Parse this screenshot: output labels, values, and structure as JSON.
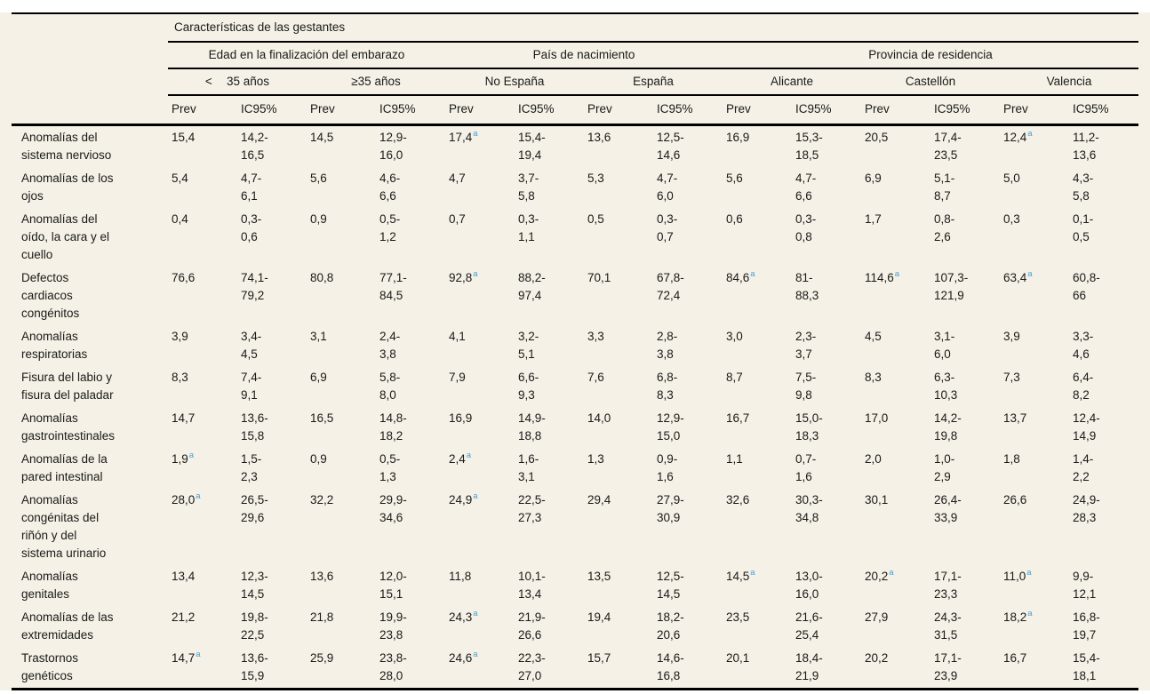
{
  "colors": {
    "background": "#f5f1e6",
    "rule": "#000000",
    "text": "#1a1a1a",
    "footnote_marker": "#44a0d8"
  },
  "table": {
    "title": "Características de las gestantes",
    "groups": [
      {
        "label": "Edad en la finalización del embarazo"
      },
      {
        "label": "País de nacimiento"
      },
      {
        "label": "Provincia de residencia"
      }
    ],
    "subgroups": [
      "<  35 años",
      "≥35 años",
      "No España",
      "España",
      "Alicante",
      "Castellón",
      "Valencia"
    ],
    "prev_label": "Prev",
    "ic_label": "IC95%",
    "footnote_symbol": "a",
    "rows": [
      {
        "label": "Anomalías del\nsistema nervioso",
        "cells": [
          {
            "v": "15,4"
          },
          {
            "v": "14,2-\n16,5"
          },
          {
            "v": "14,5"
          },
          {
            "v": "12,9-\n16,0"
          },
          {
            "v": "17,4",
            "s": "a"
          },
          {
            "v": "15,4-\n19,4"
          },
          {
            "v": "13,6"
          },
          {
            "v": "12,5-\n14,6"
          },
          {
            "v": "16,9"
          },
          {
            "v": "15,3-\n18,5"
          },
          {
            "v": "20,5"
          },
          {
            "v": "17,4-\n23,5"
          },
          {
            "v": "12,4",
            "s": "a"
          },
          {
            "v": "11,2-\n13,6"
          }
        ]
      },
      {
        "label": "Anomalías de los\nojos",
        "cells": [
          {
            "v": "5,4"
          },
          {
            "v": "4,7-\n6,1"
          },
          {
            "v": "5,6"
          },
          {
            "v": "4,6-\n6,6"
          },
          {
            "v": "4,7"
          },
          {
            "v": "3,7-\n5,8"
          },
          {
            "v": "5,3"
          },
          {
            "v": "4,7-\n6,0"
          },
          {
            "v": "5,6"
          },
          {
            "v": "4,7-\n6,6"
          },
          {
            "v": "6,9"
          },
          {
            "v": "5,1-\n8,7"
          },
          {
            "v": "5,0"
          },
          {
            "v": "4,3-\n5,8"
          }
        ]
      },
      {
        "label": "Anomalías del\noído, la cara y el\ncuello",
        "cells": [
          {
            "v": "0,4"
          },
          {
            "v": "0,3-\n0,6"
          },
          {
            "v": "0,9"
          },
          {
            "v": "0,5-\n1,2"
          },
          {
            "v": "0,7"
          },
          {
            "v": "0,3-\n1,1"
          },
          {
            "v": "0,5"
          },
          {
            "v": "0,3-\n0,7"
          },
          {
            "v": "0,6"
          },
          {
            "v": "0,3-\n0,8"
          },
          {
            "v": "1,7"
          },
          {
            "v": "0,8-\n2,6"
          },
          {
            "v": "0,3"
          },
          {
            "v": "0,1-\n0,5"
          }
        ]
      },
      {
        "label": "Defectos\ncardiacos\ncongénitos",
        "cells": [
          {
            "v": "76,6"
          },
          {
            "v": "74,1-\n79,2"
          },
          {
            "v": "80,8"
          },
          {
            "v": "77,1-\n84,5"
          },
          {
            "v": "92,8",
            "s": "a"
          },
          {
            "v": "88,2-\n97,4"
          },
          {
            "v": "70,1"
          },
          {
            "v": "67,8-\n72,4"
          },
          {
            "v": "84,6",
            "s": "a"
          },
          {
            "v": "81-\n88,3"
          },
          {
            "v": "114,6",
            "s": "a"
          },
          {
            "v": "107,3-\n121,9"
          },
          {
            "v": "63,4",
            "s": "a"
          },
          {
            "v": "60,8-\n66"
          }
        ]
      },
      {
        "label": "Anomalías\nrespiratorias",
        "cells": [
          {
            "v": "3,9"
          },
          {
            "v": "3,4-\n4,5"
          },
          {
            "v": "3,1"
          },
          {
            "v": "2,4-\n3,8"
          },
          {
            "v": "4,1"
          },
          {
            "v": "3,2-\n5,1"
          },
          {
            "v": "3,3"
          },
          {
            "v": "2,8-\n3,8"
          },
          {
            "v": "3,0"
          },
          {
            "v": "2,3-\n3,7"
          },
          {
            "v": "4,5"
          },
          {
            "v": "3,1-\n6,0"
          },
          {
            "v": "3,9"
          },
          {
            "v": "3,3-\n4,6"
          }
        ]
      },
      {
        "label": "Fisura del labio y\nfisura del paladar",
        "cells": [
          {
            "v": "8,3"
          },
          {
            "v": "7,4-\n9,1"
          },
          {
            "v": "6,9"
          },
          {
            "v": "5,8-\n8,0"
          },
          {
            "v": "7,9"
          },
          {
            "v": "6,6-\n9,3"
          },
          {
            "v": "7,6"
          },
          {
            "v": "6,8-\n8,3"
          },
          {
            "v": "8,7"
          },
          {
            "v": "7,5-\n9,8"
          },
          {
            "v": "8,3"
          },
          {
            "v": "6,3-\n10,3"
          },
          {
            "v": "7,3"
          },
          {
            "v": "6,4-\n8,2"
          }
        ]
      },
      {
        "label": "Anomalías\ngastrointestinales",
        "cells": [
          {
            "v": "14,7"
          },
          {
            "v": "13,6-\n15,8"
          },
          {
            "v": "16,5"
          },
          {
            "v": "14,8-\n18,2"
          },
          {
            "v": "16,9"
          },
          {
            "v": "14,9-\n18,8"
          },
          {
            "v": "14,0"
          },
          {
            "v": "12,9-\n15,0"
          },
          {
            "v": "16,7"
          },
          {
            "v": "15,0-\n18,3"
          },
          {
            "v": "17,0"
          },
          {
            "v": "14,2-\n19,8"
          },
          {
            "v": "13,7"
          },
          {
            "v": "12,4-\n14,9"
          }
        ]
      },
      {
        "label": "Anomalías de la\npared intestinal",
        "cells": [
          {
            "v": "1,9",
            "s": "a"
          },
          {
            "v": "1,5-\n2,3"
          },
          {
            "v": "0,9"
          },
          {
            "v": "0,5-\n1,3"
          },
          {
            "v": "2,4",
            "s": "a"
          },
          {
            "v": "1,6-\n3,1"
          },
          {
            "v": "1,3"
          },
          {
            "v": "0,9-\n1,6"
          },
          {
            "v": "1,1"
          },
          {
            "v": "0,7-\n1,6"
          },
          {
            "v": "2,0"
          },
          {
            "v": "1,0-\n2,9"
          },
          {
            "v": "1,8"
          },
          {
            "v": "1,4-\n2,2"
          }
        ]
      },
      {
        "label": "Anomalías\ncongénitas del\nriñón y del\nsistema urinario",
        "cells": [
          {
            "v": "28,0",
            "s": "a"
          },
          {
            "v": "26,5-\n29,6"
          },
          {
            "v": "32,2"
          },
          {
            "v": "29,9-\n34,6"
          },
          {
            "v": "24,9",
            "s": "a"
          },
          {
            "v": "22,5-\n27,3"
          },
          {
            "v": "29,4"
          },
          {
            "v": "27,9-\n30,9"
          },
          {
            "v": "32,6"
          },
          {
            "v": "30,3-\n34,8"
          },
          {
            "v": "30,1"
          },
          {
            "v": "26,4-\n33,9"
          },
          {
            "v": "26,6"
          },
          {
            "v": "24,9-\n28,3"
          }
        ]
      },
      {
        "label": "Anomalías\ngenitales",
        "cells": [
          {
            "v": "13,4"
          },
          {
            "v": "12,3-\n14,5"
          },
          {
            "v": "13,6"
          },
          {
            "v": "12,0-\n15,1"
          },
          {
            "v": "11,8"
          },
          {
            "v": "10,1-\n13,4"
          },
          {
            "v": "13,5"
          },
          {
            "v": "12,5-\n14,5"
          },
          {
            "v": "14,5",
            "s": "a"
          },
          {
            "v": "13,0-\n16,0"
          },
          {
            "v": "20,2",
            "s": "a"
          },
          {
            "v": "17,1-\n23,3"
          },
          {
            "v": "11,0",
            "s": "a"
          },
          {
            "v": "9,9-\n12,1"
          }
        ]
      },
      {
        "label": "Anomalías de las\nextremidades",
        "cells": [
          {
            "v": "21,2"
          },
          {
            "v": "19,8-\n22,5"
          },
          {
            "v": "21,8"
          },
          {
            "v": "19,9-\n23,8"
          },
          {
            "v": "24,3",
            "s": "a"
          },
          {
            "v": "21,9-\n26,6"
          },
          {
            "v": "19,4"
          },
          {
            "v": "18,2-\n20,6"
          },
          {
            "v": "23,5"
          },
          {
            "v": "21,6-\n25,4"
          },
          {
            "v": "27,9"
          },
          {
            "v": "24,3-\n31,5"
          },
          {
            "v": "18,2",
            "s": "a"
          },
          {
            "v": "16,8-\n19,7"
          }
        ]
      },
      {
        "label": "Trastornos\ngenéticos",
        "cells": [
          {
            "v": "14,7",
            "s": "a"
          },
          {
            "v": "13,6-\n15,9"
          },
          {
            "v": "25,9"
          },
          {
            "v": "23,8-\n28,0"
          },
          {
            "v": "24,6",
            "s": "a"
          },
          {
            "v": "22,3-\n27,0"
          },
          {
            "v": "15,7"
          },
          {
            "v": "14,6-\n16,8"
          },
          {
            "v": "20,1"
          },
          {
            "v": "18,4-\n21,9"
          },
          {
            "v": "20,2"
          },
          {
            "v": "17,1-\n23,9"
          },
          {
            "v": "16,7"
          },
          {
            "v": "15,4-\n18,1"
          }
        ]
      }
    ]
  }
}
